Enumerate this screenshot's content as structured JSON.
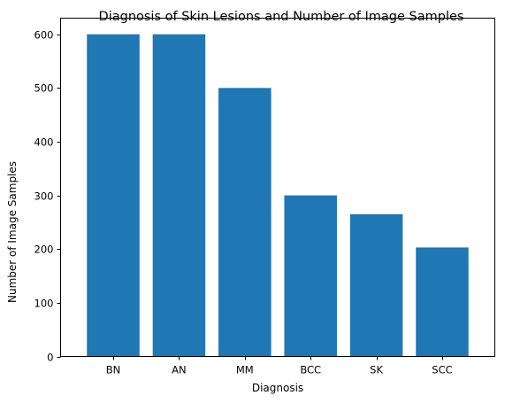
{
  "chart_data": {
    "type": "bar",
    "title": "Diagnosis of Skin Lesions and Number of Image Samples",
    "xlabel": "Diagnosis",
    "ylabel": "Number of Image Samples",
    "categories": [
      "BN",
      "AN",
      "MM",
      "BCC",
      "SK",
      "SCC"
    ],
    "values": [
      600,
      600,
      500,
      300,
      265,
      203
    ],
    "ylim": [
      0,
      630
    ],
    "yticks": [
      0,
      100,
      200,
      300,
      400,
      500,
      600
    ],
    "grid": false,
    "legend": "none",
    "bar_color": "#1f77b4"
  }
}
